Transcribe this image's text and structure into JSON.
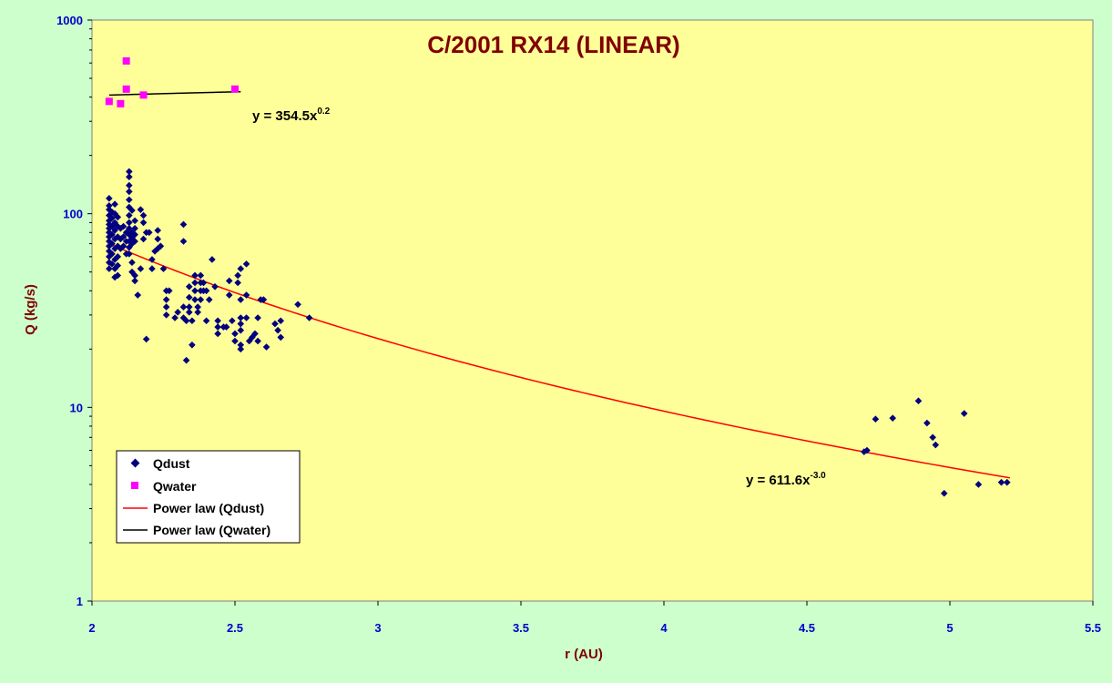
{
  "chart_data": {
    "type": "scatter",
    "title": "C/2001 RX14 (LINEAR)",
    "xlabel": "r (AU)",
    "ylabel": "Q (kg/s)",
    "xlim": [
      2,
      5.5
    ],
    "ylim": [
      1,
      1000
    ],
    "yscale": "log",
    "x_ticks": [
      "2",
      "2.5",
      "3",
      "3.5",
      "4",
      "4.5",
      "5",
      "5.5"
    ],
    "y_ticks": [
      "1",
      "10",
      "100",
      "1000"
    ],
    "grid": false,
    "legend_position": "bottom-left",
    "colors": {
      "background_outer": "#ccffcc",
      "plot_area": "#ffff99",
      "qdust": "#000080",
      "qwater": "#ff00ff",
      "fit_dust": "#ff0000",
      "fit_water": "#000000",
      "title": "#800000",
      "ticks": "#0000cc"
    },
    "series": [
      {
        "name": "Qdust",
        "marker": "diamond",
        "points": [
          [
            2.06,
            120
          ],
          [
            2.06,
            110
          ],
          [
            2.06,
            105
          ],
          [
            2.06,
            98
          ],
          [
            2.06,
            92
          ],
          [
            2.06,
            88
          ],
          [
            2.06,
            84
          ],
          [
            2.06,
            80
          ],
          [
            2.06,
            76
          ],
          [
            2.06,
            72
          ],
          [
            2.06,
            68
          ],
          [
            2.06,
            64
          ],
          [
            2.06,
            60
          ],
          [
            2.06,
            56
          ],
          [
            2.06,
            52
          ],
          [
            2.07,
            102
          ],
          [
            2.07,
            95
          ],
          [
            2.07,
            86
          ],
          [
            2.07,
            78
          ],
          [
            2.07,
            70
          ],
          [
            2.07,
            62
          ],
          [
            2.07,
            55
          ],
          [
            2.08,
            112
          ],
          [
            2.08,
            100
          ],
          [
            2.08,
            90
          ],
          [
            2.08,
            82
          ],
          [
            2.08,
            74
          ],
          [
            2.08,
            66
          ],
          [
            2.08,
            58
          ],
          [
            2.08,
            52
          ],
          [
            2.08,
            47
          ],
          [
            2.09,
            96
          ],
          [
            2.09,
            86
          ],
          [
            2.09,
            76
          ],
          [
            2.09,
            68
          ],
          [
            2.09,
            60
          ],
          [
            2.09,
            54
          ],
          [
            2.09,
            48
          ],
          [
            2.1,
            84
          ],
          [
            2.1,
            74
          ],
          [
            2.1,
            66
          ],
          [
            2.11,
            86
          ],
          [
            2.11,
            76
          ],
          [
            2.11,
            68
          ],
          [
            2.12,
            80
          ],
          [
            2.12,
            72
          ],
          [
            2.12,
            62
          ],
          [
            2.13,
            165
          ],
          [
            2.13,
            155
          ],
          [
            2.13,
            140
          ],
          [
            2.13,
            130
          ],
          [
            2.13,
            118
          ],
          [
            2.13,
            108
          ],
          [
            2.13,
            98
          ],
          [
            2.13,
            90
          ],
          [
            2.13,
            84
          ],
          [
            2.13,
            78
          ],
          [
            2.13,
            72
          ],
          [
            2.13,
            67
          ],
          [
            2.13,
            62
          ],
          [
            2.14,
            104
          ],
          [
            2.14,
            80
          ],
          [
            2.14,
            75
          ],
          [
            2.14,
            70
          ],
          [
            2.14,
            56
          ],
          [
            2.14,
            50
          ],
          [
            2.15,
            92
          ],
          [
            2.15,
            84
          ],
          [
            2.15,
            78
          ],
          [
            2.15,
            72
          ],
          [
            2.15,
            48
          ],
          [
            2.15,
            45
          ],
          [
            2.16,
            38
          ],
          [
            2.17,
            105
          ],
          [
            2.17,
            52
          ],
          [
            2.18,
            98
          ],
          [
            2.18,
            90
          ],
          [
            2.18,
            74
          ],
          [
            2.19,
            80
          ],
          [
            2.19,
            22.5
          ],
          [
            2.2,
            80
          ],
          [
            2.21,
            58
          ],
          [
            2.21,
            52
          ],
          [
            2.22,
            64
          ],
          [
            2.23,
            82
          ],
          [
            2.23,
            74
          ],
          [
            2.23,
            66
          ],
          [
            2.24,
            68
          ],
          [
            2.25,
            52
          ],
          [
            2.26,
            40
          ],
          [
            2.26,
            36
          ],
          [
            2.26,
            33
          ],
          [
            2.26,
            30
          ],
          [
            2.27,
            40
          ],
          [
            2.29,
            29
          ],
          [
            2.3,
            31
          ],
          [
            2.32,
            88
          ],
          [
            2.32,
            72
          ],
          [
            2.32,
            33
          ],
          [
            2.32,
            29
          ],
          [
            2.33,
            28
          ],
          [
            2.33,
            17.5
          ],
          [
            2.34,
            42
          ],
          [
            2.34,
            37
          ],
          [
            2.34,
            33
          ],
          [
            2.34,
            31
          ],
          [
            2.35,
            28
          ],
          [
            2.35,
            21
          ],
          [
            2.36,
            48
          ],
          [
            2.36,
            44
          ],
          [
            2.36,
            40
          ],
          [
            2.36,
            36
          ],
          [
            2.37,
            33
          ],
          [
            2.37,
            31
          ],
          [
            2.38,
            48
          ],
          [
            2.38,
            44
          ],
          [
            2.38,
            40
          ],
          [
            2.38,
            36
          ],
          [
            2.39,
            44
          ],
          [
            2.39,
            40
          ],
          [
            2.4,
            40
          ],
          [
            2.41,
            36
          ],
          [
            2.4,
            28
          ],
          [
            2.42,
            58
          ],
          [
            2.43,
            42
          ],
          [
            2.44,
            28
          ],
          [
            2.44,
            26
          ],
          [
            2.44,
            24
          ],
          [
            2.46,
            26
          ],
          [
            2.47,
            26
          ],
          [
            2.48,
            45
          ],
          [
            2.48,
            38
          ],
          [
            2.49,
            28
          ],
          [
            2.5,
            24
          ],
          [
            2.5,
            22
          ],
          [
            2.51,
            48
          ],
          [
            2.51,
            44
          ],
          [
            2.52,
            52
          ],
          [
            2.52,
            36
          ],
          [
            2.52,
            29
          ],
          [
            2.52,
            27
          ],
          [
            2.52,
            25
          ],
          [
            2.52,
            21
          ],
          [
            2.52,
            20
          ],
          [
            2.54,
            55
          ],
          [
            2.54,
            38
          ],
          [
            2.54,
            29
          ],
          [
            2.55,
            22
          ],
          [
            2.56,
            23
          ],
          [
            2.57,
            24
          ],
          [
            2.58,
            22
          ],
          [
            2.58,
            29
          ],
          [
            2.59,
            36
          ],
          [
            2.6,
            36
          ],
          [
            2.61,
            20.5
          ],
          [
            2.64,
            27
          ],
          [
            2.65,
            25
          ],
          [
            2.66,
            23
          ],
          [
            2.66,
            28
          ],
          [
            2.72,
            34
          ],
          [
            2.76,
            29
          ],
          [
            4.7,
            5.9
          ],
          [
            4.71,
            6.0
          ],
          [
            4.74,
            8.7
          ],
          [
            4.8,
            8.8
          ],
          [
            4.89,
            10.8
          ],
          [
            4.92,
            8.3
          ],
          [
            4.94,
            7.0
          ],
          [
            4.95,
            6.4
          ],
          [
            4.98,
            3.6
          ],
          [
            5.05,
            9.3
          ],
          [
            5.1,
            4.0
          ],
          [
            5.18,
            4.1
          ],
          [
            5.2,
            4.1
          ]
        ]
      },
      {
        "name": "Qwater",
        "marker": "square",
        "points": [
          [
            2.06,
            380
          ],
          [
            2.1,
            370
          ],
          [
            2.12,
            615
          ],
          [
            2.12,
            440
          ],
          [
            2.18,
            410
          ],
          [
            2.5,
            440
          ]
        ]
      },
      {
        "name": "Power law (Qdust)",
        "type": "fit",
        "fit": {
          "a": 611.6,
          "b": -3.0,
          "xrange": [
            2.06,
            5.21
          ]
        }
      },
      {
        "name": "Power law (Qwater)",
        "type": "fit",
        "fit": {
          "a": 354.5,
          "b": 0.2,
          "xrange": [
            2.06,
            2.52
          ]
        }
      }
    ],
    "annotations": [
      {
        "text_base": "y = 354.5x",
        "text_exp": "0.2",
        "near": "water fit"
      },
      {
        "text_base": "y = 611.6x",
        "text_exp": "-3.0",
        "near": "dust fit"
      }
    ]
  }
}
